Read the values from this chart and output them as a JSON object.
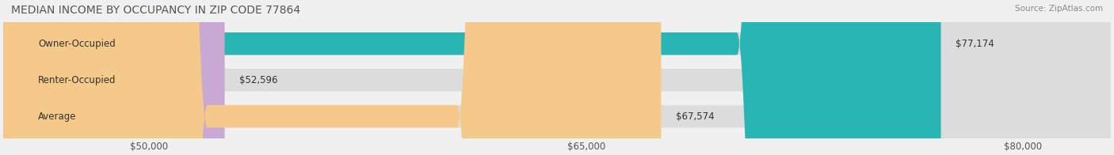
{
  "title": "MEDIAN INCOME BY OCCUPANCY IN ZIP CODE 77864",
  "source": "Source: ZipAtlas.com",
  "categories": [
    "Owner-Occupied",
    "Renter-Occupied",
    "Average"
  ],
  "values": [
    77174,
    52596,
    67574
  ],
  "bar_colors": [
    "#2ab5b5",
    "#c9a8d4",
    "#f5c98a"
  ],
  "bar_labels": [
    "$77,174",
    "$52,596",
    "$67,574"
  ],
  "xlim": [
    45000,
    83000
  ],
  "xticks": [
    50000,
    65000,
    80000
  ],
  "xtick_labels": [
    "$50,000",
    "$65,000",
    "$80,000"
  ],
  "bg_color": "#f0f0f0",
  "bar_bg_color": "#e8e8e8",
  "label_color": "#555555",
  "title_color": "#555555",
  "source_color": "#888888"
}
